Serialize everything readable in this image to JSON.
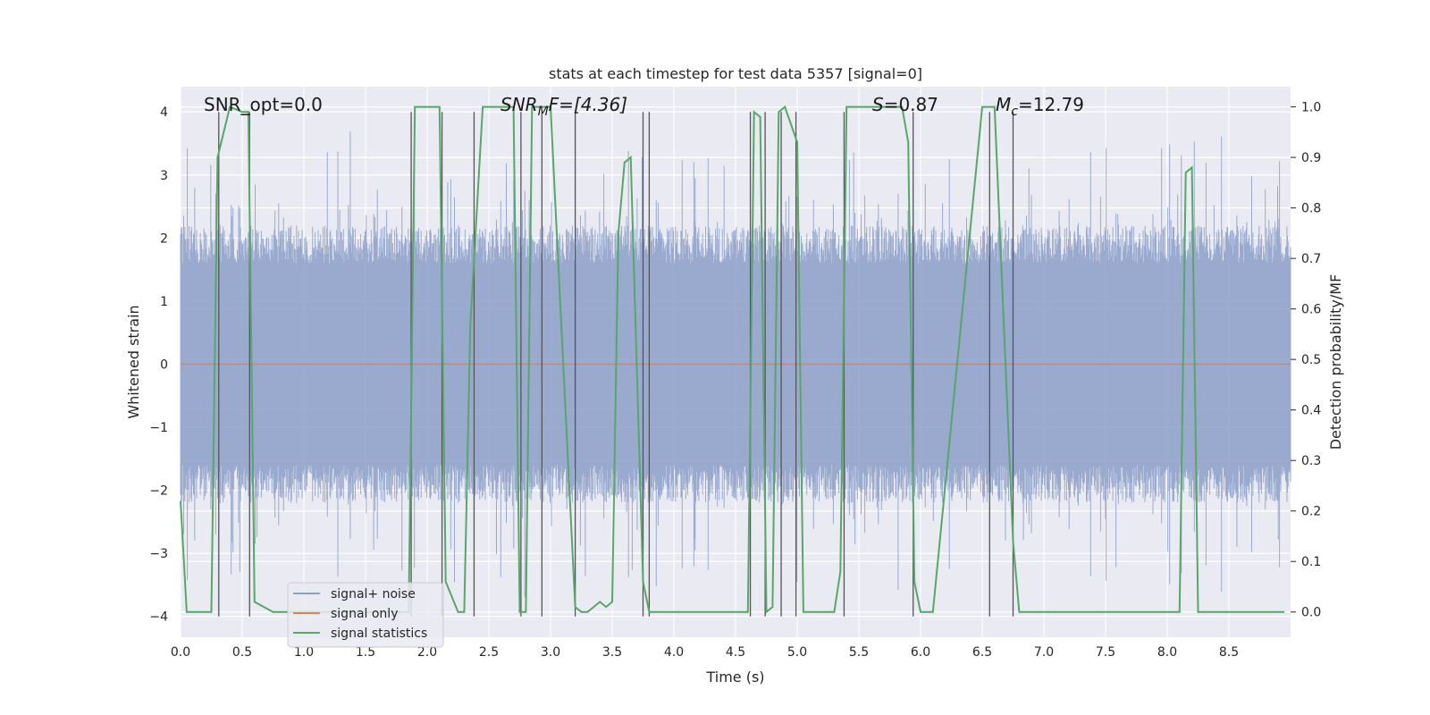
{
  "chart_data": {
    "type": "line",
    "title": "stats at each timestep for test data 5357 [signal=0]",
    "xlabel": "Time (s)",
    "ylabel_left": "Whitened strain",
    "ylabel_right": "Detection probability/MF",
    "xlim": [
      0,
      9.0
    ],
    "ylim_left": [
      -4.33,
      4.4
    ],
    "ylim_right": [
      -0.05,
      1.04
    ],
    "xticks": [
      "0.0",
      "0.5",
      "1.0",
      "1.5",
      "2.0",
      "2.5",
      "3.0",
      "3.5",
      "4.0",
      "4.5",
      "5.0",
      "5.5",
      "6.0",
      "6.5",
      "7.0",
      "7.5",
      "8.0",
      "8.5"
    ],
    "yticks_left": [
      "4",
      "3",
      "2",
      "1",
      "0",
      "−1",
      "−2",
      "−3",
      "−4"
    ],
    "yticks_right": [
      "1.0",
      "0.9",
      "0.8",
      "0.7",
      "0.6",
      "0.5",
      "0.4",
      "0.3",
      "0.2",
      "0.1",
      "0.0"
    ],
    "grid": true,
    "legend_position": "lower-left",
    "annotations": {
      "snr_opt": "SNR_opt=0.0",
      "snr_mf_main": "SNR",
      "snr_mf_sub": "M",
      "snr_mf_rest": "F=[4.36]",
      "s_main": "S",
      "s_rest": "=0.87",
      "mc_main": "M",
      "mc_sub": "c",
      "mc_rest": "=12.79"
    },
    "series": [
      {
        "name": "signal+ noise",
        "axis": "left",
        "color": "#8c9fc9",
        "note": "dense noise, amplitude envelope ~±2 with peaks to ±3.7"
      },
      {
        "name": "signal only",
        "axis": "left",
        "color": "#dd8452",
        "x": [
          0,
          9.0
        ],
        "y": [
          0,
          0
        ]
      },
      {
        "name": "signal statistics",
        "axis": "right",
        "color": "#55a868",
        "x": [
          0.0,
          0.05,
          0.2,
          0.25,
          0.3,
          0.4,
          0.5,
          0.55,
          0.6,
          0.75,
          1.0,
          1.85,
          1.9,
          1.95,
          2.1,
          2.15,
          2.25,
          2.3,
          2.35,
          2.45,
          2.5,
          2.7,
          2.75,
          2.8,
          2.85,
          2.9,
          2.95,
          3.0,
          3.2,
          3.25,
          3.3,
          3.35,
          3.4,
          3.45,
          3.5,
          3.55,
          3.6,
          3.65,
          3.75,
          3.8,
          3.85,
          3.9,
          4.0,
          4.6,
          4.65,
          4.7,
          4.75,
          4.8,
          4.85,
          4.9,
          5.0,
          5.05,
          5.1,
          5.3,
          5.35,
          5.4,
          5.85,
          5.9,
          5.95,
          6.0,
          6.05,
          6.1,
          6.5,
          6.55,
          6.6,
          6.75,
          6.8,
          6.85,
          6.9,
          8.1,
          8.15,
          8.2,
          8.25,
          8.3,
          8.95
        ],
        "y": [
          0.22,
          0.0,
          0.0,
          0.0,
          0.9,
          1.0,
          0.99,
          0.99,
          0.02,
          0.0,
          0.0,
          0.0,
          1.0,
          1.0,
          1.0,
          0.06,
          0.0,
          0.0,
          0.57,
          1.0,
          1.0,
          1.0,
          0.0,
          0.0,
          1.0,
          1.0,
          1.0,
          1.0,
          0.01,
          0.0,
          0.0,
          0.01,
          0.02,
          0.01,
          0.02,
          0.75,
          0.89,
          0.9,
          0.06,
          0.0,
          0.0,
          0.0,
          0.0,
          0.0,
          0.99,
          0.98,
          0.0,
          0.01,
          0.99,
          1.0,
          0.93,
          0.0,
          0.0,
          0.0,
          0.08,
          1.0,
          1.0,
          0.93,
          0.06,
          0.0,
          0.0,
          0.0,
          1.0,
          1.0,
          1.0,
          0.14,
          0.0,
          0.0,
          0.0,
          0.0,
          0.87,
          0.88,
          0.0,
          0.0,
          0.0
        ]
      }
    ],
    "vertical_markers": [
      0.31,
      0.56,
      1.87,
      2.12,
      2.38,
      2.76,
      2.93,
      3.2,
      3.75,
      3.8,
      4.62,
      4.74,
      4.87,
      4.99,
      5.38,
      5.94,
      6.56,
      6.75
    ]
  }
}
